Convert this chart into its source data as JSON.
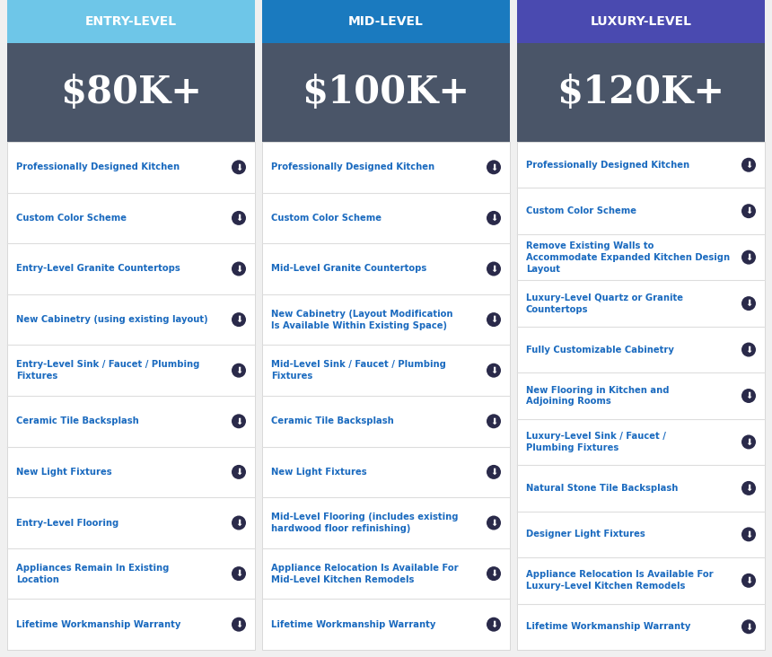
{
  "bg_color": "#f0f0f0",
  "col_bg": "#ffffff",
  "header_colors": [
    "#6ec6e8",
    "#1a7abf",
    "#4a4ab0"
  ],
  "price_bg": "#4a5568",
  "columns": [
    {
      "title": "ENTRY-LEVEL",
      "price": "$80K+",
      "items": [
        "Professionally Designed Kitchen",
        "Custom Color Scheme",
        "Entry-Level Granite Countertops",
        "New Cabinetry (using existing layout)",
        "Entry-Level Sink / Faucet / Plumbing\nFixtures",
        "Ceramic Tile Backsplash",
        "New Light Fixtures",
        "Entry-Level Flooring",
        "Appliances Remain In Existing\nLocation",
        "Lifetime Workmanship Warranty"
      ]
    },
    {
      "title": "MID-LEVEL",
      "price": "$100K+",
      "items": [
        "Professionally Designed Kitchen",
        "Custom Color Scheme",
        "Mid-Level Granite Countertops",
        "New Cabinetry (Layout Modification\nIs Available Within Existing Space)",
        "Mid-Level Sink / Faucet / Plumbing\nFixtures",
        "Ceramic Tile Backsplash",
        "New Light Fixtures",
        "Mid-Level Flooring (includes existing\nhardwood floor refinishing)",
        "Appliance Relocation Is Available For\nMid-Level Kitchen Remodels",
        "Lifetime Workmanship Warranty"
      ]
    },
    {
      "title": "LUXURY-LEVEL",
      "price": "$120K+",
      "items": [
        "Professionally Designed Kitchen",
        "Custom Color Scheme",
        "Remove Existing Walls to\nAccommodate Expanded Kitchen Design\nLayout",
        "Luxury-Level Quartz or Granite\nCountertops",
        "Fully Customizable Cabinetry",
        "New Flooring in Kitchen and\nAdjoining Rooms",
        "Luxury-Level Sink / Faucet /\nPlumbing Fixtures",
        "Natural Stone Tile Backsplash",
        "Designer Light Fixtures",
        "Appliance Relocation Is Available For\nLuxury-Level Kitchen Remodels",
        "Lifetime Workmanship Warranty"
      ]
    }
  ]
}
